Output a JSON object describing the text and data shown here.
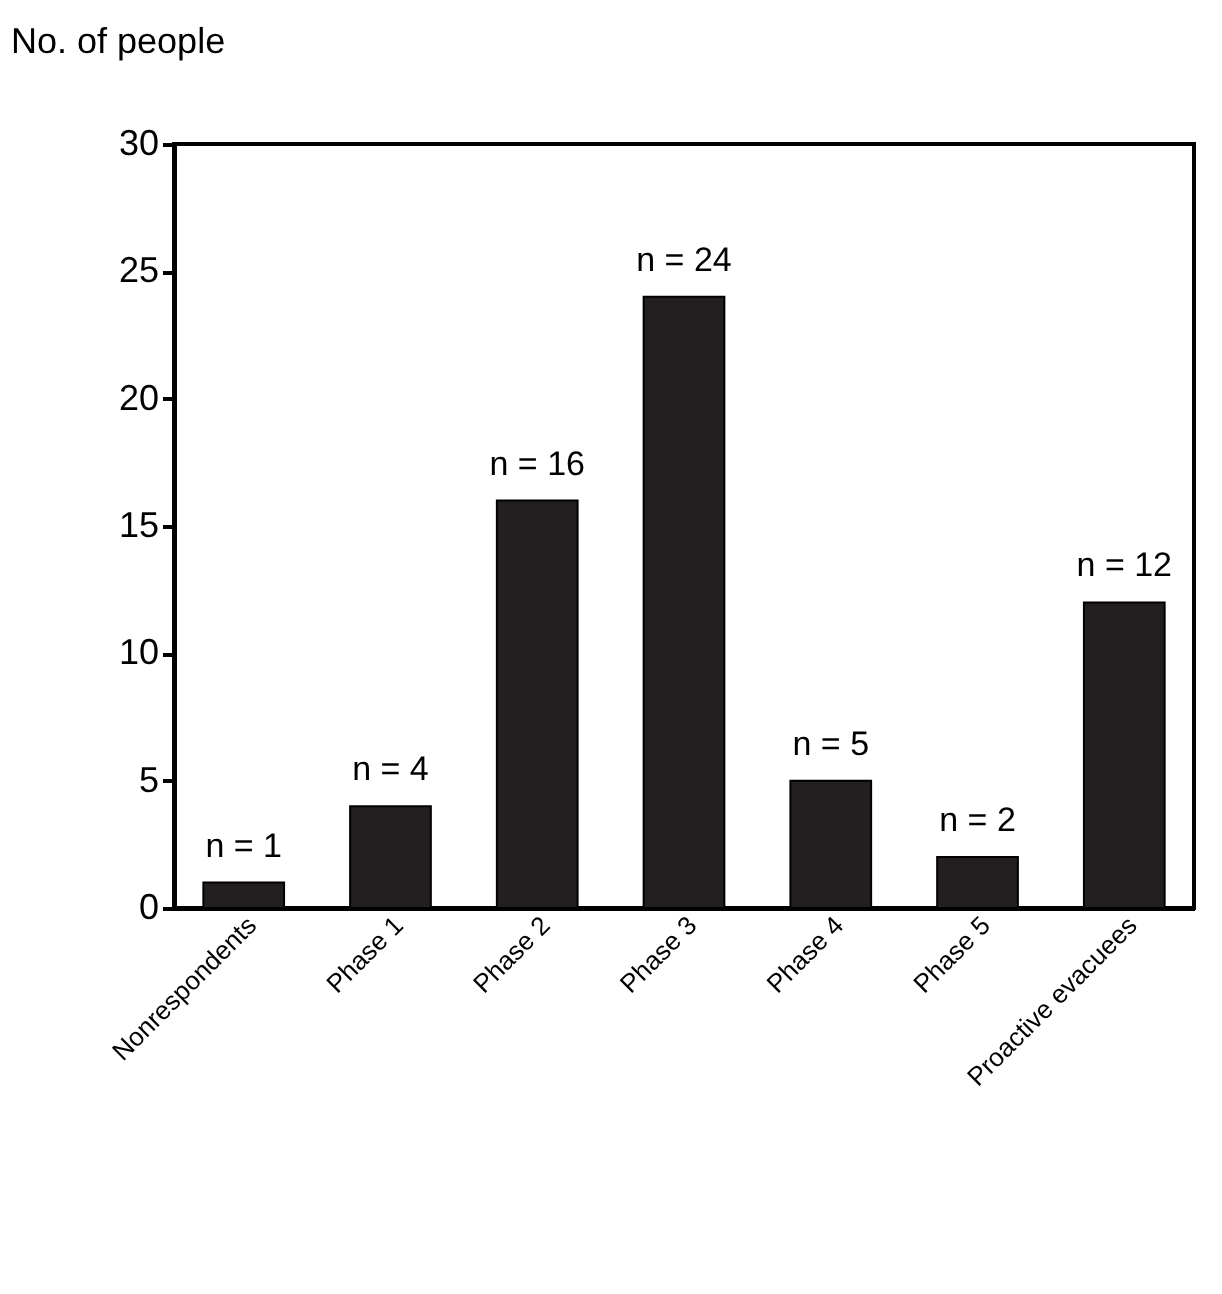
{
  "chart_data": {
    "type": "bar",
    "ylabel": "No. of people",
    "categories": [
      "Nonrespondents",
      "Phase 1",
      "Phase 2",
      "Phase 3",
      "Phase 4",
      "Phase 5",
      "Proactive evacuees"
    ],
    "values": [
      1,
      4,
      16,
      24,
      5,
      2,
      12
    ],
    "value_labels": [
      "n = 1",
      "n = 4",
      "n = 16",
      "n = 24",
      "n = 5",
      "n = 2",
      "n = 12"
    ],
    "color": "#231f20",
    "ylim": [
      0,
      30
    ],
    "yticks": [
      0,
      5,
      10,
      15,
      20,
      25,
      30
    ]
  }
}
